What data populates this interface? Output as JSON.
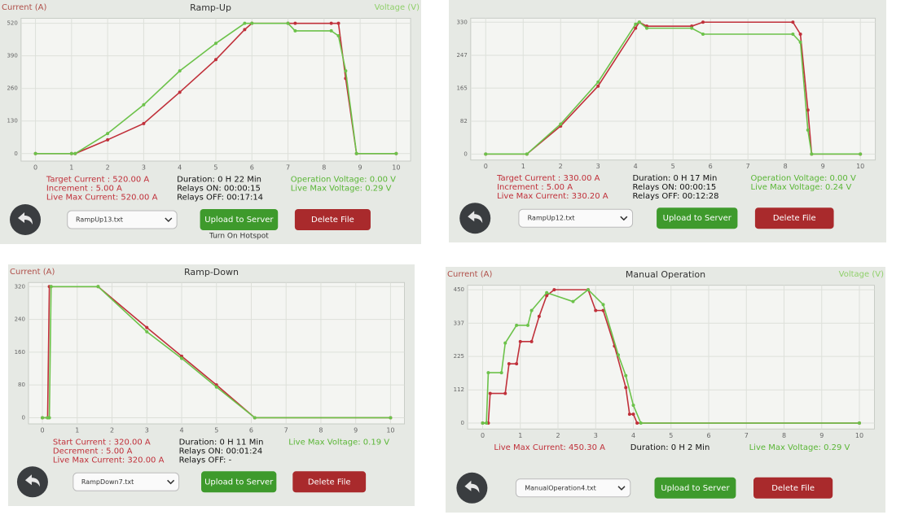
{
  "chart_data": [
    {
      "type": "line",
      "title": "Ramp-Up",
      "y_label": "Current (A)",
      "y2_label": "Voltage (V)",
      "xlim": [
        -0.4,
        10.4
      ],
      "xticks": [
        0,
        1,
        2,
        3,
        4,
        5,
        6,
        7,
        8,
        9,
        10
      ],
      "ylim": [
        -30,
        540
      ],
      "yticks": [
        0,
        130,
        260,
        390,
        520
      ],
      "grid": true,
      "series": [
        {
          "name": "Current",
          "color": "#c0303a",
          "x": [
            0,
            1,
            1.1,
            2,
            3,
            4,
            5,
            5.8,
            6,
            7,
            7.2,
            8.2,
            8.4,
            8.6,
            8.9,
            10
          ],
          "values": [
            0,
            0,
            0,
            55,
            120,
            245,
            375,
            495,
            520,
            520,
            520,
            520,
            520,
            300,
            0,
            0
          ]
        },
        {
          "name": "Voltage",
          "color": "#6cc24a",
          "x": [
            0,
            1,
            1.1,
            2,
            3,
            4,
            5,
            5.8,
            6,
            7,
            7.2,
            8.2,
            8.4,
            8.6,
            8.9,
            10
          ],
          "values": [
            0,
            0,
            0,
            80,
            195,
            330,
            440,
            520,
            520,
            520,
            490,
            490,
            470,
            330,
            0,
            0
          ]
        }
      ]
    },
    {
      "type": "line",
      "xlim": [
        -0.4,
        10.4
      ],
      "xticks": [
        0,
        1,
        2,
        3,
        4,
        5,
        6,
        7,
        8,
        9,
        10
      ],
      "ylim": [
        -15,
        340
      ],
      "yticks": [
        0,
        82,
        165,
        247,
        330
      ],
      "grid": true,
      "series": [
        {
          "name": "Current",
          "color": "#c0303a",
          "x": [
            0,
            1.1,
            2,
            3,
            4,
            4.1,
            4.3,
            5.5,
            5.8,
            8.2,
            8.4,
            8.6,
            8.7,
            10
          ],
          "values": [
            0,
            0,
            70,
            170,
            315,
            330,
            320,
            320,
            330,
            330,
            300,
            110,
            0,
            0
          ]
        },
        {
          "name": "Voltage",
          "color": "#6cc24a",
          "x": [
            0,
            1.1,
            2,
            3,
            4,
            4.1,
            4.3,
            5.5,
            5.8,
            8.2,
            8.4,
            8.6,
            8.7,
            10
          ],
          "values": [
            0,
            0,
            75,
            180,
            325,
            330,
            315,
            315,
            300,
            300,
            280,
            60,
            0,
            0
          ]
        }
      ]
    },
    {
      "type": "line",
      "title": "Ramp-Down",
      "y_label": "Current (A)",
      "xlim": [
        -0.4,
        10.4
      ],
      "xticks": [
        0,
        1,
        2,
        3,
        4,
        5,
        6,
        7,
        8,
        9,
        10
      ],
      "ylim": [
        -15,
        330
      ],
      "yticks": [
        0,
        80,
        160,
        240,
        320
      ],
      "grid": true,
      "series": [
        {
          "name": "Current",
          "color": "#c0303a",
          "x": [
            0,
            0.15,
            0.2,
            0.25,
            1.6,
            3,
            4,
            5,
            6.1,
            10
          ],
          "values": [
            0,
            0,
            320,
            320,
            320,
            220,
            150,
            80,
            0,
            0
          ]
        },
        {
          "name": "Voltage",
          "color": "#6cc24a",
          "x": [
            0,
            0.15,
            0.2,
            0.25,
            1.6,
            3,
            4,
            5,
            6.1,
            10
          ],
          "values": [
            0,
            0,
            0,
            320,
            320,
            210,
            145,
            75,
            0,
            0
          ]
        }
      ]
    },
    {
      "type": "line",
      "title": "Manual Operation",
      "y_label": "Current (A)",
      "y2_label": "Voltage (V)",
      "xlim": [
        -0.4,
        10.4
      ],
      "xticks": [
        0,
        1,
        2,
        3,
        4,
        5,
        6,
        7,
        8,
        9,
        10
      ],
      "ylim": [
        -20,
        465
      ],
      "yticks": [
        0,
        112,
        225,
        337,
        450
      ],
      "grid": true,
      "series": [
        {
          "name": "Current",
          "color": "#c0303a",
          "x": [
            0,
            0.15,
            0.2,
            0.6,
            0.7,
            0.9,
            1.0,
            1.3,
            1.5,
            1.7,
            1.9,
            2.8,
            3.0,
            3.2,
            3.5,
            3.8,
            3.9,
            4.0,
            4.1,
            10
          ],
          "values": [
            0,
            0,
            100,
            100,
            200,
            200,
            275,
            275,
            360,
            430,
            450,
            450,
            380,
            380,
            260,
            120,
            30,
            30,
            0,
            0
          ]
        },
        {
          "name": "Voltage",
          "color": "#6cc24a",
          "x": [
            0,
            0.1,
            0.15,
            0.5,
            0.6,
            0.9,
            1.2,
            1.3,
            1.7,
            2.4,
            2.8,
            3.2,
            3.6,
            3.8,
            4.0,
            4.2,
            10
          ],
          "values": [
            0,
            0,
            170,
            170,
            270,
            330,
            330,
            380,
            440,
            410,
            450,
            400,
            230,
            160,
            60,
            0,
            0
          ]
        }
      ]
    }
  ],
  "panels": [
    {
      "info_left": [
        "Target Current : 520.00 A",
        "Increment : 5.00 A",
        "Live Max Current: 520.00 A"
      ],
      "info_middle": [
        "Duration: 0 H 22 Min",
        "Relays ON: 00:00:15",
        "Relays OFF: 00:17:14"
      ],
      "info_right": [
        "Operation Voltage: 0.00 V",
        "Live Max Voltage: 0.29 V"
      ],
      "file": "RampUp13.txt",
      "upload": "Upload to Server",
      "delete": "Delete File",
      "hotspot": "Turn On Hotspot"
    },
    {
      "info_left": [
        "Target Current : 330.00 A",
        "Increment : 5.00 A",
        "Live Max Current: 330.20 A"
      ],
      "info_middle": [
        "Duration: 0 H 17 Min",
        "Relays ON: 00:00:15",
        "Relays OFF: 00:12:28"
      ],
      "info_right": [
        "Operation Voltage: 0.00 V",
        "Live Max Voltage: 0.24 V"
      ],
      "file": "RampUp12.txt",
      "upload": "Upload to Server",
      "delete": "Delete File"
    },
    {
      "info_left": [
        "Start Current : 320.00 A",
        "Decrement : 5.00 A",
        "Live Max Current: 320.00 A"
      ],
      "info_middle": [
        "Duration: 0 H 11 Min",
        "Relays ON: 00:01:24",
        "Relays OFF: -"
      ],
      "info_right": [
        "Live Max Voltage: 0.19 V"
      ],
      "file": "RampDown7.txt",
      "upload": "Upload to Server",
      "delete": "Delete File"
    },
    {
      "info_left": [
        "Live Max Current: 450.30 A"
      ],
      "info_middle": [
        "Duration: 0 H 2 Min"
      ],
      "info_right": [
        "Live Max Voltage: 0.29 V"
      ],
      "file": "ManualOperation4.txt",
      "upload": "Upload to Server",
      "delete": "Delete File"
    }
  ]
}
